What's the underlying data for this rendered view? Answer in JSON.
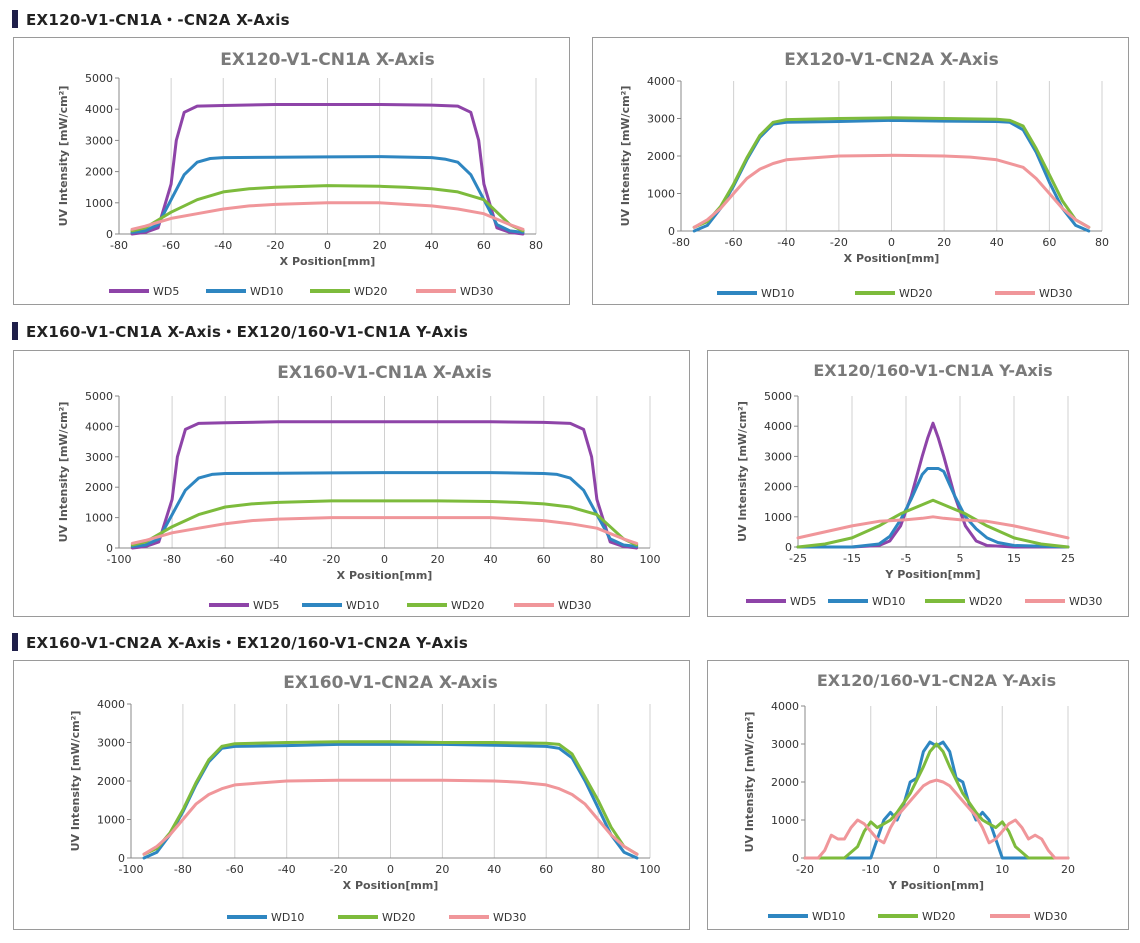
{
  "sections": [
    "EX120-V1-CN1A・-CN2A X-Axis",
    "EX160-V1-CN1A X-Axis・EX120/160-V1-CN1A Y-Axis",
    "EX160-V1-CN2A X-Axis・EX120/160-V1-CN2A Y-Axis"
  ],
  "colors": {
    "WD5": "#8e44a8",
    "WD10": "#2e86c1",
    "WD20": "#7dbb3c",
    "WD30": "#f0969a",
    "section_bar": "#1f1f4a"
  },
  "chart_data": [
    {
      "id": "c1",
      "type": "line",
      "title": "EX120-V1-CN1A X-Axis",
      "xlabel": "X Position[mm]",
      "ylabel": "UV Intensity [mW/cm²]",
      "xlim": [
        -80,
        80
      ],
      "ylim": [
        0,
        5000
      ],
      "xstep": 20,
      "ystep": 1000,
      "grid": "vertical",
      "legend": "bottom",
      "series": [
        {
          "name": "WD5",
          "x": [
            -75,
            -70,
            -65,
            -60,
            -58,
            -55,
            -50,
            -40,
            -20,
            0,
            20,
            40,
            50,
            55,
            58,
            60,
            65,
            70,
            75
          ],
          "values": [
            0,
            50,
            200,
            1600,
            3000,
            3900,
            4100,
            4120,
            4150,
            4150,
            4150,
            4130,
            4100,
            3900,
            3000,
            1600,
            200,
            50,
            0
          ]
        },
        {
          "name": "WD10",
          "x": [
            -75,
            -70,
            -65,
            -60,
            -55,
            -50,
            -45,
            -40,
            -20,
            0,
            20,
            40,
            45,
            50,
            55,
            60,
            65,
            70,
            75
          ],
          "values": [
            50,
            100,
            300,
            1100,
            1900,
            2300,
            2420,
            2450,
            2460,
            2470,
            2480,
            2450,
            2400,
            2300,
            1900,
            1100,
            300,
            100,
            50
          ]
        },
        {
          "name": "WD20",
          "x": [
            -75,
            -70,
            -65,
            -60,
            -50,
            -40,
            -30,
            -20,
            0,
            20,
            30,
            40,
            50,
            60,
            65,
            70,
            75
          ],
          "values": [
            100,
            200,
            450,
            700,
            1100,
            1350,
            1450,
            1500,
            1550,
            1530,
            1500,
            1450,
            1350,
            1100,
            700,
            300,
            100
          ]
        },
        {
          "name": "WD30",
          "x": [
            -75,
            -70,
            -60,
            -50,
            -40,
            -30,
            -20,
            0,
            20,
            30,
            40,
            50,
            60,
            70,
            75
          ],
          "values": [
            150,
            250,
            500,
            650,
            800,
            900,
            950,
            1000,
            1000,
            950,
            900,
            800,
            650,
            300,
            150
          ]
        }
      ]
    },
    {
      "id": "c2",
      "type": "line",
      "title": "EX120-V1-CN2A X-Axis",
      "xlabel": "X Position[mm]",
      "ylabel": "UV Intensity [mW/cm²]",
      "xlim": [
        -80,
        80
      ],
      "ylim": [
        0,
        4000
      ],
      "xstep": 20,
      "ystep": 1000,
      "grid": "vertical",
      "legend": "bottom",
      "series": [
        {
          "name": "WD10",
          "x": [
            -75,
            -70,
            -65,
            -60,
            -55,
            -50,
            -45,
            -40,
            -20,
            0,
            20,
            40,
            45,
            50,
            55,
            60,
            65,
            70,
            75
          ],
          "values": [
            0,
            150,
            600,
            1200,
            1900,
            2500,
            2850,
            2900,
            2920,
            2950,
            2930,
            2920,
            2900,
            2700,
            2100,
            1300,
            600,
            150,
            0
          ]
        },
        {
          "name": "WD20",
          "x": [
            -75,
            -70,
            -65,
            -60,
            -55,
            -50,
            -45,
            -40,
            -20,
            0,
            20,
            40,
            45,
            50,
            55,
            60,
            65,
            70,
            75
          ],
          "values": [
            100,
            250,
            650,
            1250,
            1950,
            2550,
            2900,
            2970,
            3000,
            3020,
            3000,
            2980,
            2950,
            2800,
            2200,
            1500,
            800,
            300,
            100
          ]
        },
        {
          "name": "WD30",
          "x": [
            -75,
            -70,
            -65,
            -60,
            -55,
            -50,
            -45,
            -40,
            -30,
            -20,
            0,
            20,
            30,
            40,
            50,
            55,
            60,
            65,
            70,
            75
          ],
          "values": [
            100,
            300,
            600,
            1000,
            1400,
            1650,
            1800,
            1900,
            1950,
            2000,
            2020,
            2000,
            1970,
            1900,
            1700,
            1400,
            1000,
            600,
            300,
            100
          ]
        }
      ]
    },
    {
      "id": "c3",
      "type": "line",
      "title": "EX160-V1-CN1A X-Axis",
      "xlabel": "X Position[mm]",
      "ylabel": "UV Intensity [mW/cm²]",
      "xlim": [
        -100,
        100
      ],
      "ylim": [
        0,
        5000
      ],
      "xstep": 20,
      "ystep": 1000,
      "grid": "vertical",
      "legend": "bottom",
      "series": [
        {
          "name": "WD5",
          "x": [
            -95,
            -90,
            -85,
            -80,
            -78,
            -75,
            -70,
            -60,
            -40,
            -20,
            0,
            20,
            40,
            60,
            70,
            75,
            78,
            80,
            85,
            90,
            95
          ],
          "values": [
            0,
            50,
            200,
            1600,
            3000,
            3900,
            4100,
            4120,
            4150,
            4150,
            4150,
            4150,
            4150,
            4130,
            4100,
            3900,
            3000,
            1600,
            200,
            50,
            0
          ]
        },
        {
          "name": "WD10",
          "x": [
            -95,
            -90,
            -85,
            -80,
            -75,
            -70,
            -65,
            -60,
            -40,
            -20,
            0,
            20,
            40,
            60,
            65,
            70,
            75,
            80,
            85,
            90,
            95
          ],
          "values": [
            50,
            100,
            300,
            1100,
            1900,
            2300,
            2420,
            2450,
            2460,
            2470,
            2480,
            2480,
            2480,
            2450,
            2420,
            2300,
            1900,
            1100,
            300,
            100,
            50
          ]
        },
        {
          "name": "WD20",
          "x": [
            -95,
            -90,
            -85,
            -80,
            -70,
            -60,
            -50,
            -40,
            -20,
            0,
            20,
            40,
            50,
            60,
            70,
            80,
            85,
            90,
            95
          ],
          "values": [
            100,
            200,
            450,
            700,
            1100,
            1350,
            1450,
            1500,
            1550,
            1550,
            1550,
            1530,
            1500,
            1450,
            1350,
            1100,
            700,
            300,
            100
          ]
        },
        {
          "name": "WD30",
          "x": [
            -95,
            -90,
            -80,
            -70,
            -60,
            -50,
            -40,
            -20,
            0,
            20,
            40,
            50,
            60,
            70,
            80,
            90,
            95
          ],
          "values": [
            150,
            250,
            500,
            650,
            800,
            900,
            950,
            1000,
            1000,
            1000,
            1000,
            950,
            900,
            800,
            650,
            300,
            150
          ]
        }
      ]
    },
    {
      "id": "c4",
      "type": "line",
      "title": "EX120/160-V1-CN1A Y-Axis",
      "xlabel": "Y Position[mm]",
      "ylabel": "UV Intensity [mW/cm²]",
      "xlim": [
        -25,
        25
      ],
      "ylim": [
        0,
        5000
      ],
      "xstep": 10,
      "ystep": 1000,
      "grid": "vertical",
      "legend": "bottom",
      "series": [
        {
          "name": "WD5",
          "x": [
            -25,
            -15,
            -10,
            -8,
            -6,
            -4,
            -2,
            -1,
            0,
            1,
            2,
            4,
            6,
            8,
            10,
            15,
            25
          ],
          "values": [
            0,
            0,
            50,
            200,
            700,
            1700,
            3000,
            3600,
            4100,
            3600,
            3000,
            1700,
            700,
            200,
            50,
            0,
            0
          ]
        },
        {
          "name": "WD10",
          "x": [
            -25,
            -15,
            -10,
            -8,
            -6,
            -4,
            -2,
            -1,
            0,
            1,
            2,
            3,
            4,
            6,
            8,
            10,
            12,
            15,
            25
          ],
          "values": [
            0,
            0,
            100,
            350,
            900,
            1600,
            2400,
            2600,
            2600,
            2600,
            2500,
            2100,
            1700,
            1000,
            600,
            300,
            150,
            50,
            0
          ]
        },
        {
          "name": "WD20",
          "x": [
            -25,
            -20,
            -15,
            -10,
            -8,
            -6,
            -4,
            -2,
            0,
            2,
            4,
            6,
            8,
            10,
            15,
            20,
            25
          ],
          "values": [
            0,
            100,
            300,
            700,
            900,
            1100,
            1250,
            1400,
            1550,
            1400,
            1250,
            1100,
            900,
            700,
            300,
            100,
            0
          ]
        },
        {
          "name": "WD30",
          "x": [
            -25,
            -20,
            -15,
            -10,
            -5,
            -2,
            0,
            2,
            5,
            10,
            15,
            20,
            25
          ],
          "values": [
            300,
            500,
            700,
            850,
            900,
            950,
            1000,
            950,
            900,
            850,
            700,
            500,
            300
          ]
        }
      ]
    },
    {
      "id": "c5",
      "type": "line",
      "title": "EX160-V1-CN2A X-Axis",
      "xlabel": "X Position[mm]",
      "ylabel": "UV Intensity [mW/cm²]",
      "xlim": [
        -100,
        100
      ],
      "ylim": [
        0,
        4000
      ],
      "xstep": 20,
      "ystep": 1000,
      "grid": "vertical",
      "legend": "bottom",
      "series": [
        {
          "name": "WD10",
          "x": [
            -95,
            -90,
            -85,
            -80,
            -75,
            -70,
            -65,
            -60,
            -40,
            -20,
            0,
            20,
            40,
            60,
            65,
            70,
            75,
            80,
            85,
            90,
            95
          ],
          "values": [
            0,
            150,
            600,
            1200,
            1900,
            2500,
            2850,
            2900,
            2920,
            2950,
            2950,
            2950,
            2930,
            2900,
            2850,
            2600,
            2000,
            1300,
            600,
            150,
            0
          ]
        },
        {
          "name": "WD20",
          "x": [
            -95,
            -90,
            -85,
            -80,
            -75,
            -70,
            -65,
            -60,
            -40,
            -20,
            0,
            20,
            40,
            60,
            65,
            70,
            75,
            80,
            85,
            90,
            95
          ],
          "values": [
            100,
            250,
            650,
            1250,
            1950,
            2550,
            2900,
            2970,
            3000,
            3020,
            3020,
            3000,
            3000,
            2980,
            2950,
            2700,
            2100,
            1500,
            800,
            300,
            100
          ]
        },
        {
          "name": "WD30",
          "x": [
            -95,
            -90,
            -85,
            -80,
            -75,
            -70,
            -65,
            -60,
            -50,
            -40,
            -20,
            0,
            20,
            40,
            50,
            60,
            65,
            70,
            75,
            80,
            85,
            90,
            95
          ],
          "values": [
            100,
            300,
            600,
            1000,
            1400,
            1650,
            1800,
            1900,
            1950,
            2000,
            2020,
            2020,
            2020,
            2000,
            1970,
            1900,
            1800,
            1650,
            1400,
            1000,
            600,
            300,
            100
          ]
        }
      ]
    },
    {
      "id": "c6",
      "type": "line",
      "title": "EX120/160-V1-CN2A Y-Axis",
      "xlabel": "Y Position[mm]",
      "ylabel": "UV Intensity [mW/cm²]",
      "xlim": [
        -20,
        20
      ],
      "ylim": [
        0,
        4000
      ],
      "xstep": 10,
      "ystep": 1000,
      "grid": "vertical",
      "legend": "bottom",
      "series": [
        {
          "name": "WD10",
          "x": [
            -20,
            -10,
            -9,
            -8,
            -7,
            -6,
            -5,
            -4,
            -3,
            -2,
            -1,
            0,
            1,
            2,
            3,
            4,
            5,
            6,
            7,
            8,
            9,
            10,
            20
          ],
          "values": [
            0,
            0,
            500,
            1000,
            1200,
            1000,
            1400,
            2000,
            2100,
            2800,
            3050,
            2950,
            3050,
            2800,
            2100,
            2000,
            1400,
            1000,
            1200,
            1000,
            500,
            0,
            0
          ]
        },
        {
          "name": "WD20",
          "x": [
            -20,
            -14,
            -12,
            -11,
            -10,
            -9,
            -8,
            -7,
            -6,
            -4,
            -2,
            -1,
            0,
            1,
            2,
            4,
            6,
            7,
            8,
            9,
            10,
            11,
            12,
            14,
            20
          ],
          "values": [
            0,
            0,
            300,
            700,
            950,
            800,
            900,
            1000,
            1200,
            1700,
            2400,
            2800,
            3000,
            2800,
            2400,
            1700,
            1200,
            1000,
            900,
            800,
            950,
            700,
            300,
            0,
            0
          ]
        },
        {
          "name": "WD30",
          "x": [
            -20,
            -18,
            -17,
            -16,
            -15,
            -14,
            -13,
            -12,
            -11,
            -10,
            -9,
            -8,
            -7,
            -6,
            -5,
            -4,
            -3,
            -2,
            -1,
            0,
            1,
            2,
            3,
            4,
            5,
            6,
            7,
            8,
            9,
            10,
            11,
            12,
            13,
            14,
            15,
            16,
            17,
            18,
            20
          ],
          "values": [
            0,
            0,
            200,
            600,
            500,
            500,
            800,
            1000,
            900,
            700,
            500,
            400,
            800,
            1100,
            1300,
            1500,
            1700,
            1900,
            2000,
            2050,
            2000,
            1900,
            1700,
            1500,
            1300,
            1100,
            800,
            400,
            500,
            700,
            900,
            1000,
            800,
            500,
            600,
            500,
            200,
            0,
            0
          ]
        }
      ]
    }
  ]
}
